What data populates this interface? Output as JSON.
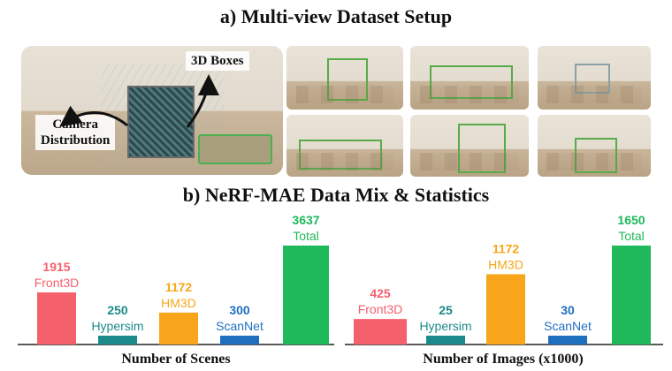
{
  "figure": {
    "title_a": "a) Multi-view Dataset Setup",
    "title_b": "b) NeRF-MAE Data Mix & Statistics",
    "photo_labels": {
      "boxes": "3D Boxes",
      "camera": "Camera\nDistribution"
    }
  },
  "colors": {
    "Front3D": "#f4606c",
    "Hypersim": "#1b8a8a",
    "HM3D": "#f8a51b",
    "ScanNet": "#1f6fbf",
    "Total": "#1fb85a"
  },
  "chart_data": [
    {
      "type": "bar",
      "title": "",
      "xlabel": "Number of Scenes",
      "ylabel": "",
      "categories": [
        "Front3D",
        "Hypersim",
        "HM3D",
        "ScanNet",
        "Total"
      ],
      "values": [
        1915,
        250,
        1172,
        300,
        3637
      ],
      "value_labels": [
        "1915",
        "250",
        "1172",
        "300",
        "3637"
      ],
      "ylim": [
        0,
        3637
      ],
      "grid": false
    },
    {
      "type": "bar",
      "title": "",
      "xlabel": "Number of Images (x1000)",
      "ylabel": "",
      "categories": [
        "Front3D",
        "Hypersim",
        "HM3D",
        "ScanNet",
        "Total"
      ],
      "values": [
        425,
        25,
        1172,
        30,
        1650
      ],
      "value_labels": [
        "425",
        "25",
        "1172",
        "30",
        "1650"
      ],
      "ylim": [
        0,
        1650
      ],
      "grid": false
    }
  ]
}
